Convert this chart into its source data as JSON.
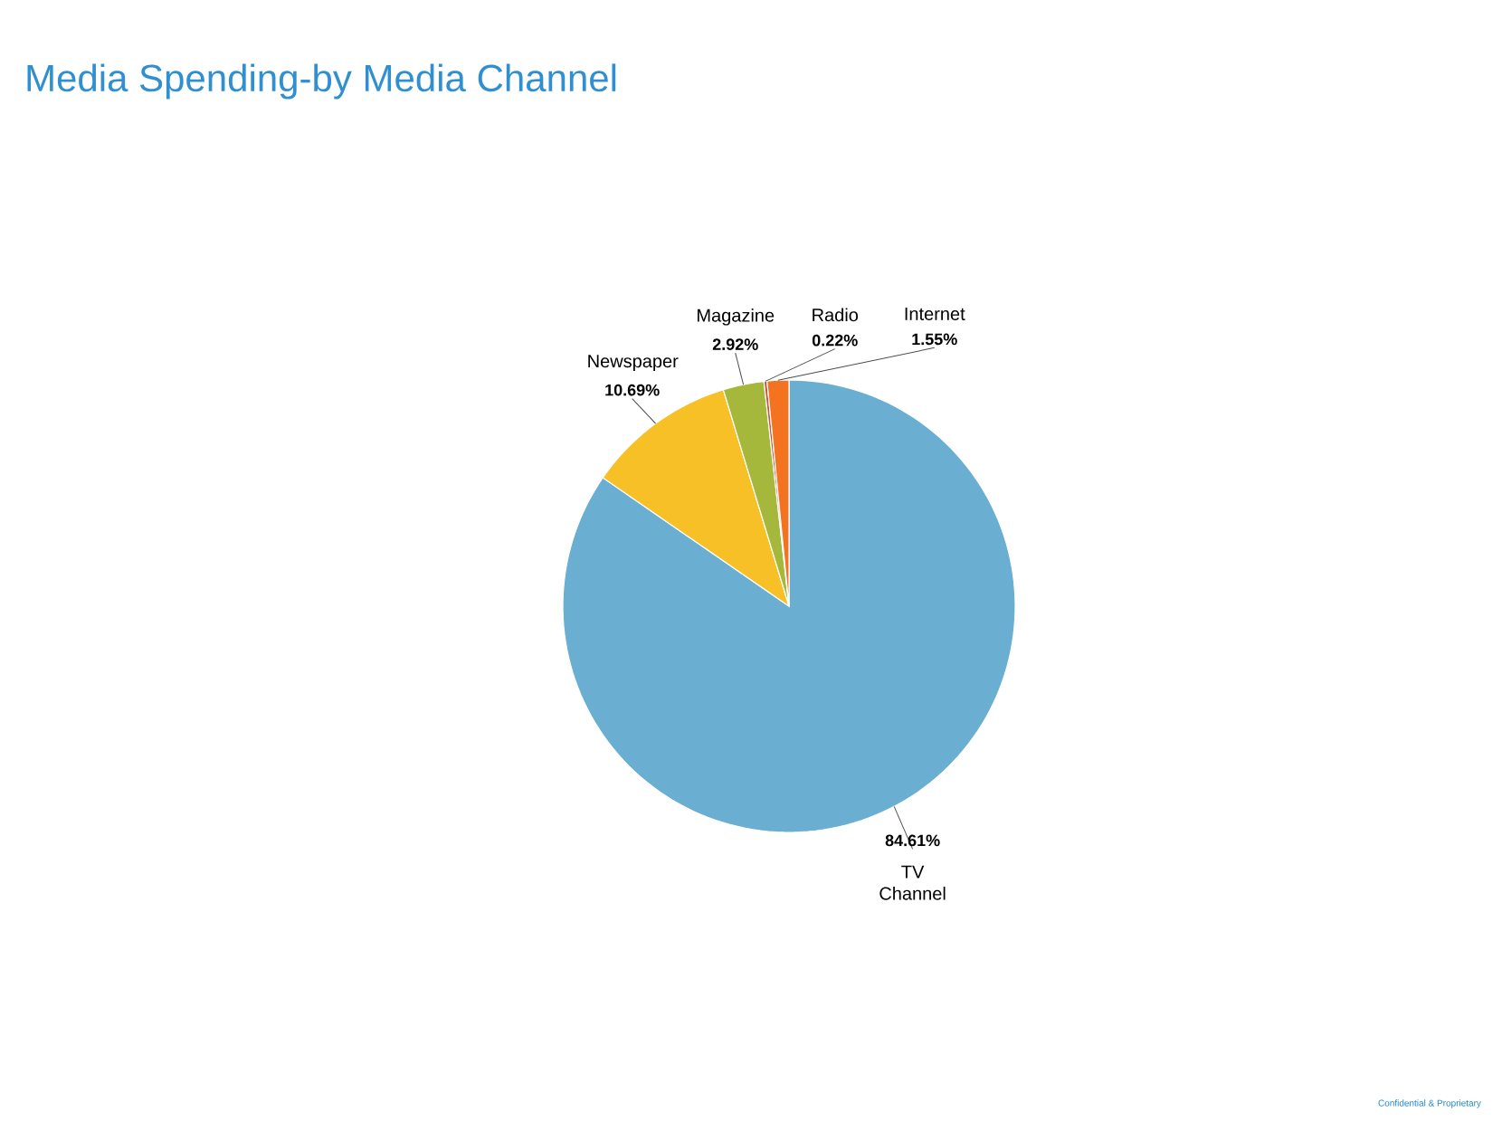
{
  "chart_data": {
    "type": "pie",
    "title": "Media Spending-by Media Channel",
    "categories": [
      "TV Channel",
      "Newspaper",
      "Magazine",
      "Radio",
      "Internet"
    ],
    "values": [
      84.61,
      10.69,
      2.92,
      0.22,
      1.55
    ],
    "value_labels": [
      "84.61%",
      "10.69%",
      "2.92%",
      "0.22%",
      "1.55%"
    ],
    "colors": [
      "#6aaed2",
      "#f6c026",
      "#a6b83c",
      "#c8553d",
      "#f47320"
    ],
    "annotations": [
      "Confidential & Proprietary"
    ]
  }
}
